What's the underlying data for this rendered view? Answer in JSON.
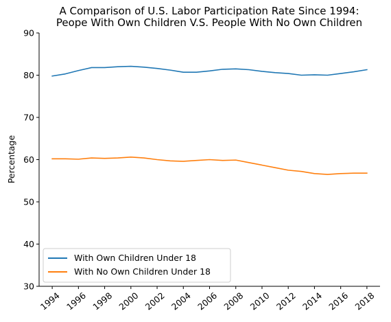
{
  "chart_data": {
    "type": "line",
    "title_line1": "A Comparison of U.S. Labor Participation Rate Since 1994:",
    "title_line2": "Peope With Own Children V.S. People With No Own Children",
    "xlabel": "",
    "ylabel": "Percentage",
    "xlim": [
      1993,
      2019
    ],
    "ylim": [
      30,
      90
    ],
    "xticks": [
      "1994",
      "1996",
      "1998",
      "2000",
      "2002",
      "2004",
      "2006",
      "2008",
      "2010",
      "2012",
      "2014",
      "2016",
      "2018"
    ],
    "yticks": [
      "30",
      "40",
      "50",
      "60",
      "70",
      "80",
      "90"
    ],
    "grid": false,
    "legend_position": "lower-left",
    "x": [
      1994,
      1995,
      1996,
      1997,
      1998,
      1999,
      2000,
      2001,
      2002,
      2003,
      2004,
      2005,
      2006,
      2007,
      2008,
      2009,
      2010,
      2011,
      2012,
      2013,
      2014,
      2015,
      2016,
      2017,
      2018
    ],
    "series": [
      {
        "name": "With Own Children Under 18",
        "color": "#1f77b4",
        "values": [
          79.8,
          80.3,
          81.1,
          81.8,
          81.8,
          82.0,
          82.1,
          81.9,
          81.6,
          81.2,
          80.7,
          80.7,
          81.0,
          81.4,
          81.5,
          81.3,
          80.9,
          80.6,
          80.4,
          80.0,
          80.1,
          80.0,
          80.4,
          80.8,
          81.3
        ]
      },
      {
        "name": "With No Own Children Under 18",
        "color": "#ff7f0e",
        "values": [
          60.2,
          60.2,
          60.1,
          60.4,
          60.3,
          60.4,
          60.6,
          60.4,
          60.0,
          59.7,
          59.6,
          59.8,
          60.0,
          59.8,
          59.9,
          59.3,
          58.7,
          58.1,
          57.5,
          57.2,
          56.7,
          56.5,
          56.7,
          56.8,
          56.8
        ]
      }
    ]
  }
}
